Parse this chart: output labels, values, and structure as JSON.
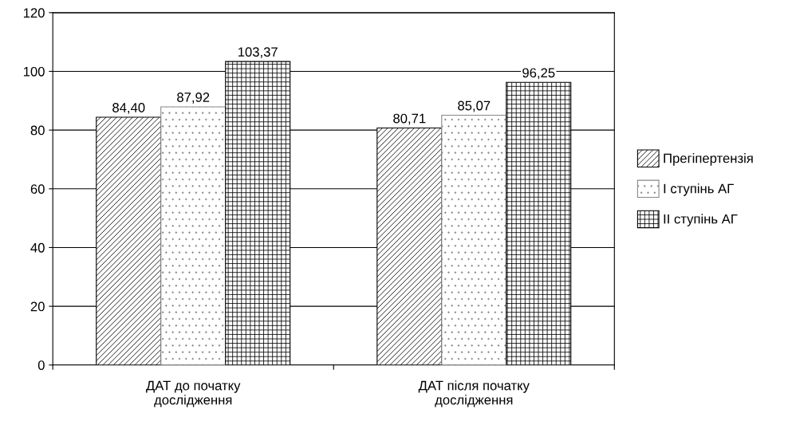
{
  "chart_data": {
    "type": "bar",
    "categories": [
      "ДАТ до початку\nдослідження",
      "ДАТ після початку\nдослідження"
    ],
    "series": [
      {
        "name": "Прегіпертензія",
        "color": "#000000",
        "values": [
          84.4,
          80.71
        ],
        "value_labels": [
          "84,40",
          "80,71"
        ]
      },
      {
        "name": "I ступінь АГ",
        "color": "#888888",
        "values": [
          87.92,
          85.07
        ],
        "value_labels": [
          "87,92",
          "85,07"
        ]
      },
      {
        "name": "II ступінь АГ",
        "color": "#000000",
        "values": [
          103.37,
          96.25
        ],
        "value_labels": [
          "103,37",
          "96,25"
        ]
      }
    ],
    "ylim": [
      0,
      120
    ],
    "yticks": [
      0,
      20,
      40,
      60,
      80,
      100,
      120
    ],
    "grid": "y",
    "legend": "right"
  }
}
